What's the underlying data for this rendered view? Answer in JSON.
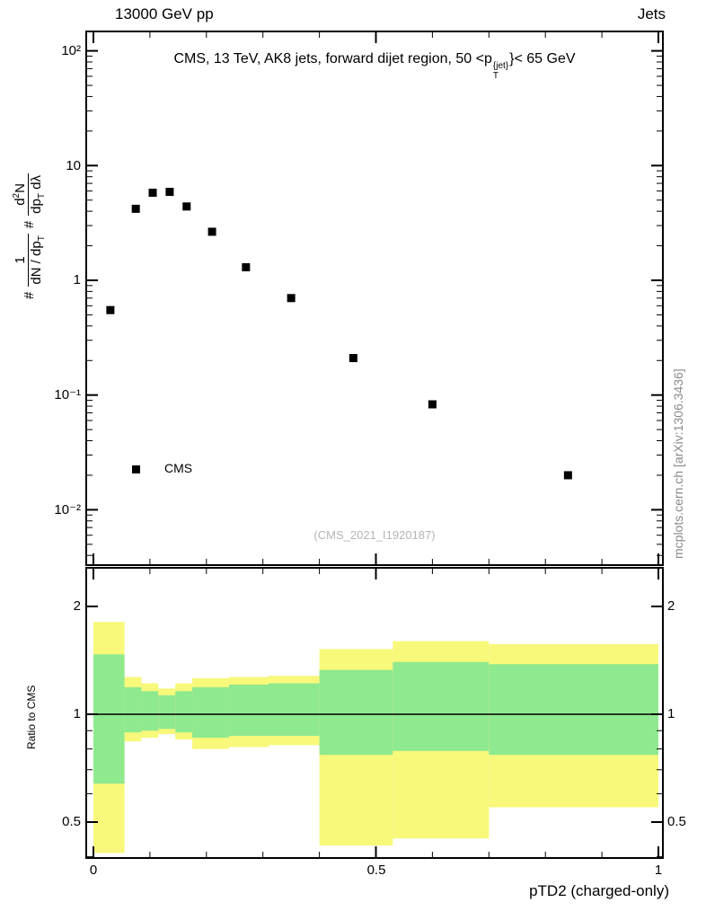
{
  "header": {
    "left": "13000 GeV pp",
    "right": "Jets"
  },
  "top_panel": {
    "title_pre": "CMS, 13 TeV, AK8 jets, forward dijet region, 50 <p",
    "title_sup": "{jet}",
    "title_sub": "T",
    "title_post": "}< 65 GeV",
    "ylabel": {
      "hash1": "#",
      "f1_num": "1",
      "f1_den_pre": "dN / dp",
      "f1_den_sub": "T",
      "hash2": "#",
      "f2_num_pre": "d",
      "f2_num_sup": "2",
      "f2_num_post": "N",
      "f2_den_pre": "dp",
      "f2_den_sub": "T",
      "f2_den_post": " dλ"
    },
    "legend_label": "CMS",
    "watermark": "(CMS_2021_I1920187)",
    "side_note": "mcplots.cern.ch [arXiv:1306.3436]"
  },
  "ratio_panel": {
    "ylabel": "Ratio to CMS"
  },
  "axes": {
    "top_yticks": [
      "10²",
      "10",
      "1",
      "10⁻¹",
      "10⁻²"
    ],
    "ratio_yticks_left": [
      "2",
      "1",
      "0.5"
    ],
    "ratio_yticks_right": [
      "2",
      "1",
      "0.5"
    ],
    "xticks": [
      "0",
      "0.5",
      "1"
    ]
  },
  "chart_data": [
    {
      "type": "scatter",
      "title": "CMS, 13 TeV, AK8 jets, forward dijet region, 50 < pT^{jet} < 65 GeV",
      "ylabel": "# 1/(dN/dpT) # d²N/(dpT dλ)",
      "xlabel": "pTD2 (charged-only)",
      "xlim": [
        -0.013,
        1.008
      ],
      "ylog": true,
      "ylim": [
        0.0033,
        148
      ],
      "points": {
        "x": [
          0.03,
          0.075,
          0.105,
          0.135,
          0.165,
          0.21,
          0.27,
          0.35,
          0.46,
          0.6,
          0.84
        ],
        "y": [
          0.55,
          4.2,
          5.8,
          5.9,
          4.4,
          2.65,
          1.3,
          0.7,
          0.21,
          0.083,
          0.02
        ]
      },
      "marker": {
        "shape": "square",
        "color": "#000000",
        "size": 9
      },
      "legend": [
        {
          "label": "CMS",
          "marker": "black-square"
        }
      ]
    },
    {
      "type": "band-ratio",
      "ylabel": "Ratio to CMS",
      "xlabel": "pTD2 (charged-only)",
      "ylog": true,
      "ylim": [
        0.397,
        2.56
      ],
      "yticks_major": [
        0.5,
        1,
        2
      ],
      "yticks_minor": [
        0.4,
        0.6,
        0.7,
        0.8,
        0.9
      ],
      "reference_line": 1,
      "colors": {
        "outer": "#f8f87a",
        "inner": "#8fe98f"
      },
      "segments": [
        {
          "x0": 0.0,
          "x1": 0.055,
          "outer": [
            0.41,
            1.81
          ],
          "inner": [
            0.64,
            1.47
          ]
        },
        {
          "x0": 0.055,
          "x1": 0.085,
          "outer": [
            0.84,
            1.27
          ],
          "inner": [
            0.89,
            1.19
          ]
        },
        {
          "x0": 0.085,
          "x1": 0.115,
          "outer": [
            0.86,
            1.22
          ],
          "inner": [
            0.9,
            1.16
          ]
        },
        {
          "x0": 0.115,
          "x1": 0.145,
          "outer": [
            0.88,
            1.18
          ],
          "inner": [
            0.91,
            1.13
          ]
        },
        {
          "x0": 0.145,
          "x1": 0.175,
          "outer": [
            0.85,
            1.22
          ],
          "inner": [
            0.89,
            1.16
          ]
        },
        {
          "x0": 0.175,
          "x1": 0.24,
          "outer": [
            0.8,
            1.26
          ],
          "inner": [
            0.86,
            1.19
          ]
        },
        {
          "x0": 0.24,
          "x1": 0.31,
          "outer": [
            0.81,
            1.27
          ],
          "inner": [
            0.87,
            1.21
          ]
        },
        {
          "x0": 0.31,
          "x1": 0.4,
          "outer": [
            0.82,
            1.28
          ],
          "inner": [
            0.87,
            1.22
          ]
        },
        {
          "x0": 0.4,
          "x1": 0.53,
          "outer": [
            0.43,
            1.52
          ],
          "inner": [
            0.77,
            1.33
          ]
        },
        {
          "x0": 0.53,
          "x1": 0.7,
          "outer": [
            0.45,
            1.6
          ],
          "inner": [
            0.79,
            1.4
          ]
        },
        {
          "x0": 0.7,
          "x1": 1.0,
          "outer": [
            0.55,
            1.57
          ],
          "inner": [
            0.77,
            1.38
          ]
        }
      ]
    }
  ]
}
